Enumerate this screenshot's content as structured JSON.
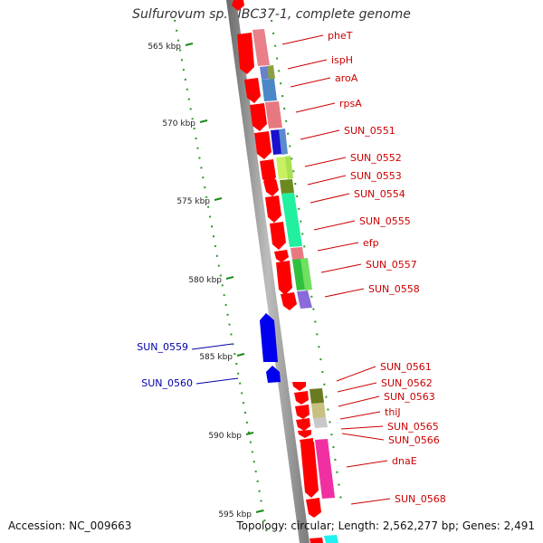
{
  "title": "Sulfurovum sp. NBC37-1, complete genome",
  "accession": "Accession: NC_009663",
  "topology": "Topology: circular; Length: 2,562,277 bp; Genes: 2,491",
  "scale_ticks": [
    "565 kbp",
    "570 kbp",
    "575 kbp",
    "580 kbp",
    "585 kbp",
    "590 kbp",
    "595 kbp"
  ],
  "forward_gene_labels": [
    "pheT",
    "ispH",
    "aroA",
    "rpsA",
    "SUN_0551",
    "SUN_0552",
    "SUN_0553",
    "SUN_0554",
    "SUN_0555",
    "efp",
    "SUN_0557",
    "SUN_0558",
    "SUN_0561",
    "SUN_0562",
    "SUN_0563",
    "thiJ",
    "SUN_0565",
    "SUN_0566",
    "dnaE",
    "SUN_0568"
  ],
  "reverse_gene_labels": [
    "SUN_0559",
    "SUN_0560"
  ],
  "colors": {
    "forward_strand": "#ff0000",
    "forward_label": "#cc0000",
    "reverse_strand": "#0000ee",
    "reverse_label": "#0000aa",
    "backbone": "#8a8a8a",
    "ticks": "#1a8a1a"
  }
}
